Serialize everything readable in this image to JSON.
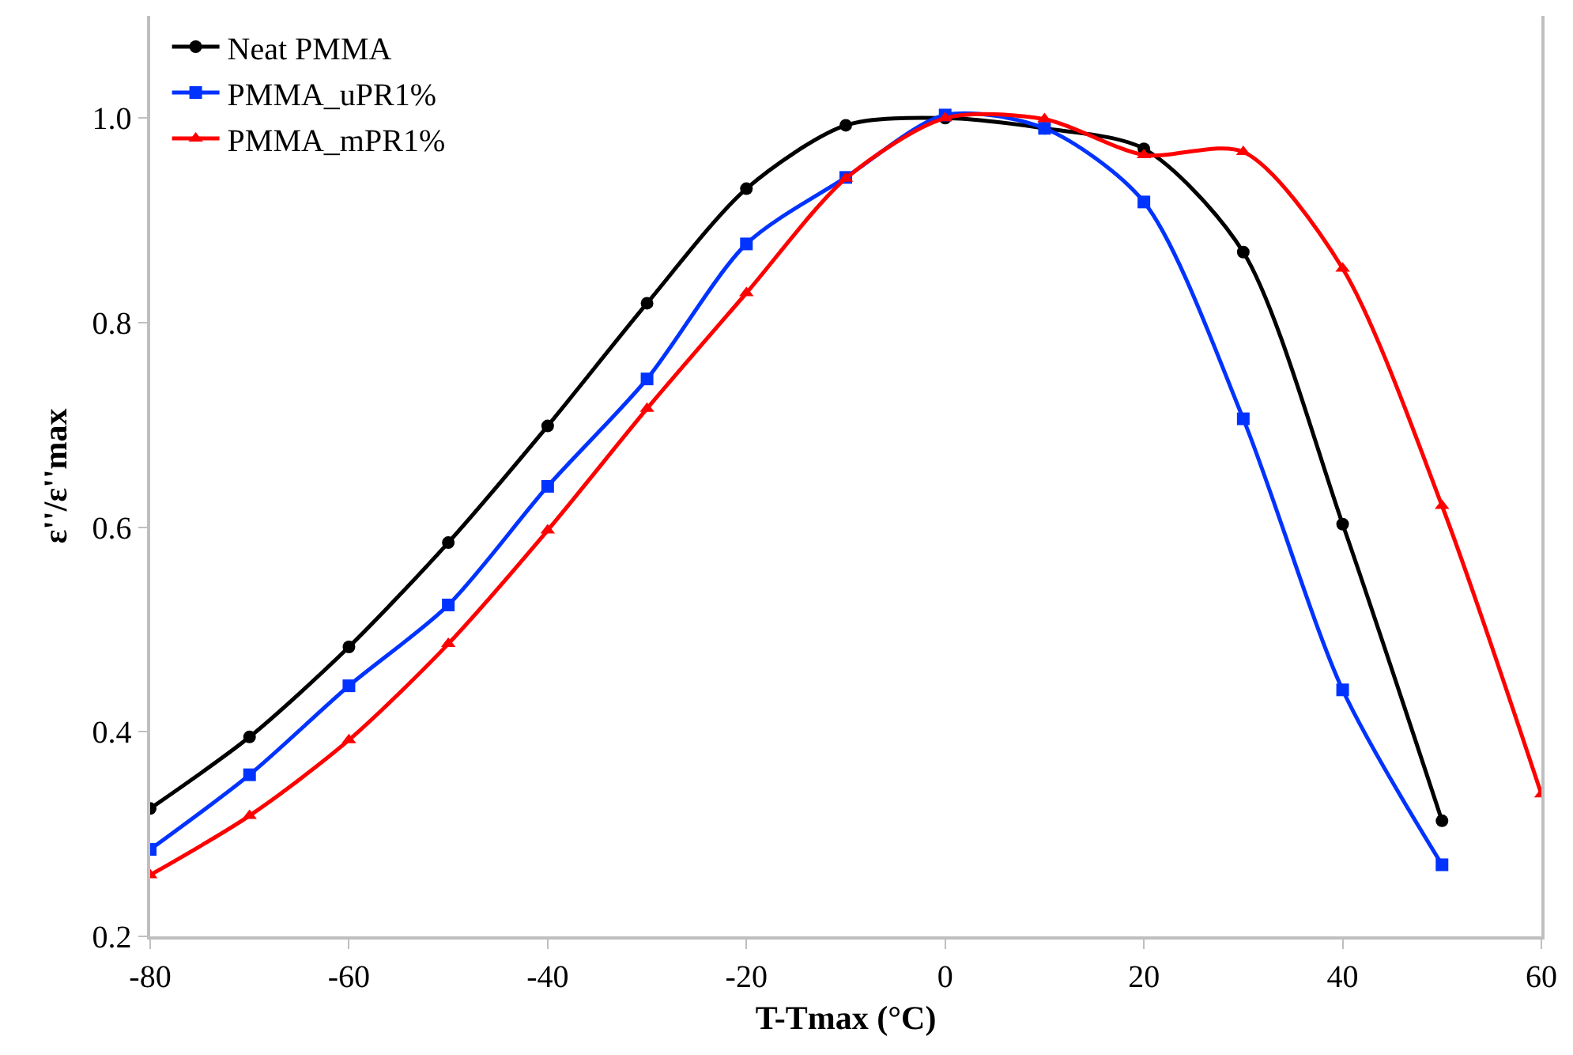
{
  "chart_data": {
    "type": "line",
    "xlabel": "T-Tmax (°C)",
    "ylabel": "ε''/ε''max",
    "x": [
      -80,
      -70,
      -60,
      -50,
      -40,
      -30,
      -20,
      -10,
      0,
      10,
      20,
      30,
      40,
      50,
      60
    ],
    "series": [
      {
        "name": "Neat PMMA",
        "color": "#000000",
        "marker": "circle",
        "values": [
          0.325,
          0.395,
          0.483,
          0.585,
          0.699,
          0.819,
          0.931,
          0.993,
          1.0,
          0.99,
          0.97,
          0.869,
          0.603,
          0.313,
          null
        ]
      },
      {
        "name": "PMMA_uPR1%",
        "color": "#0033ff",
        "marker": "square",
        "values": [
          0.285,
          0.358,
          0.445,
          0.524,
          0.64,
          0.745,
          0.877,
          0.942,
          1.003,
          0.99,
          0.918,
          0.706,
          0.441,
          0.27,
          null
        ]
      },
      {
        "name": "PMMA_mPR1%",
        "color": "#ff0000",
        "marker": "triangle",
        "values": [
          0.26,
          0.318,
          0.392,
          0.486,
          0.597,
          0.716,
          0.829,
          0.941,
          1.0,
          0.999,
          0.964,
          0.967,
          0.853,
          0.621,
          0.339
        ]
      }
    ],
    "xlim": [
      -80,
      60
    ],
    "xticks": [
      -80,
      -60,
      -40,
      -20,
      0,
      20,
      40,
      60
    ],
    "ylim": [
      0.2,
      1.1
    ],
    "yticks": [
      {
        "value": 0.2,
        "label": "0.2"
      },
      {
        "value": 0.4,
        "label": "0.4"
      },
      {
        "value": 0.6,
        "label": "0.6"
      },
      {
        "value": 0.8,
        "label": "0.8"
      },
      {
        "value": 1.0,
        "label": "1.0"
      }
    ],
    "legend": "top left",
    "line_style": "solid"
  }
}
